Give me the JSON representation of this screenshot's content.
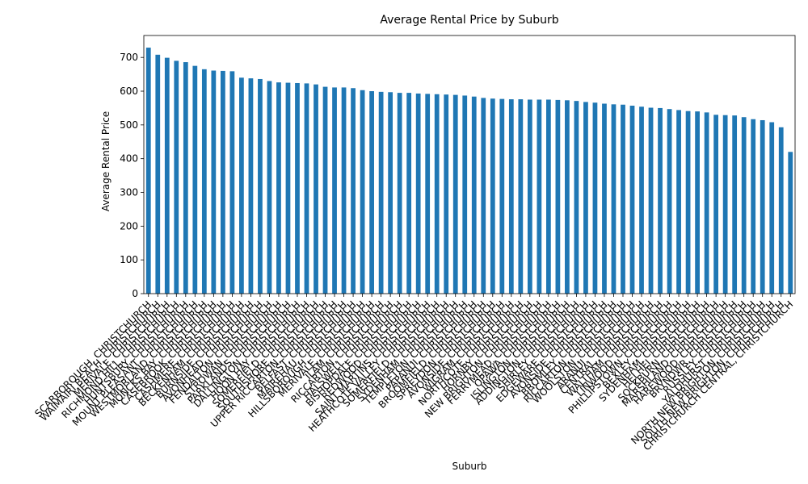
{
  "chart_data": {
    "type": "bar",
    "title": "Average Rental Price by Suburb",
    "xlabel": "Suburb",
    "ylabel": "Average Rental Price",
    "ylim": [
      0,
      765
    ],
    "yticks": [
      0,
      100,
      200,
      300,
      400,
      500,
      600,
      700
    ],
    "grid": false,
    "legend": "none",
    "bar_color": "#1f77b4",
    "categories": [
      "SCARBOROUGH, CHRISTCHURCH",
      "WAIMAIRI BEACH, CHRISTCHURCH",
      "MERIVALE, CHRISTCHURCH",
      "RICHMOND HILL, CHRISTCHURCH",
      "HUNTSBURY, CHRISTCHURCH",
      "MOUNT PLEASANT, CHRISTCHURCH",
      "WESTMORLAND, CHRISTCHURCH",
      "MONCKS BAY, CHRISTCHURCH",
      "CASEBROOK, CHRISTCHURCH",
      "CASHMERE, CHRISTCHURCH",
      "BECKENHAM, CHRISTCHURCH",
      "BURNSIDE, CHRISTCHURCH",
      "AVONHEAD, CHRISTCHURCH",
      "FENDALTON, CHRISTCHURCH",
      "STROWAN, CHRISTCHURCH",
      "PARKLANDS, CHRISTCHURCH",
      "DALLINGTON, CHRISTCHURCH",
      "HOON HAY, CHRISTCHURCH",
      "SOMERFIELD, CHRISTCHURCH",
      "SOUTHSHORE, CHRISTCHURCH",
      "UPPER RICCARTON, CHRISTCHURCH",
      "BELFAST, CHRISTCHURCH",
      "MAIREHAU, CHRISTCHURCH",
      "HILLSBOROUGH, CHRISTCHURCH",
      "MERIVALE, CHRISTCHURCH",
      "ILAM, CHRISTCHURCH",
      "RICCARTON, CHRISTCHURCH",
      "HALSWELL, CHRISTCHURCH",
      "BISHOPDALE, CHRISTCHURCH",
      "REDWOOD, CHRISTCHURCH",
      "SAINT MARTINS, CHRISTCHURCH",
      "HEATHCOTE VALLEY, CHRISTCHURCH",
      "SOMERFIELD, CHRISTCHURCH",
      "SYDENHAM, CHRISTCHURCH",
      "TEMPLETON, CHRISTCHURCH",
      "PAPANUI, CHRISTCHURCH",
      "BROOMFIELD, CHRISTCHURCH",
      "SPREYDON, CHRISTCHURCH",
      "AVONSIDE, CHRISTCHURCH",
      "WIGRAM, CHRISTCHURCH",
      "NORTHCOTE, CHRISTCHURCH",
      "HORNBY, CHRISTCHURCH",
      "NEW BRIGHTON, CHRISTCHURCH",
      "FERRYMEAD, CHRISTCHURCH",
      "OPAWA, CHRISTCHURCH",
      "ISLINGTON, CHRISTCHURCH",
      "ADDINGTON, CHRISTCHURCH",
      "SHIRLEY, CHRISTCHURCH",
      "EDGEWARE, CHRISTCHURCH",
      "AVONSIDE, CHRISTCHURCH",
      "BROMLEY, CHRISTCHURCH",
      "RICCARTON, CHRISTCHURCH",
      "WOOLSTON, CHRISTCHURCH",
      "ARANUI, CHRISTCHURCH",
      "CENTRAL, CHRISTCHURCH",
      "WALTHAM, CHRISTCHURCH",
      "LINWOOD, CHRISTCHURCH",
      "PHILLIPSTOWN, CHRISTCHURCH",
      "BEXLEY, CHRISTCHURCH",
      "SYDENHAM, CHRISTCHURCH",
      "HEI HEI, CHRISTCHURCH",
      "SOCKBURN, CHRISTCHURCH",
      "MARSHLAND, CHRISTCHURCH",
      "HAREWOOD, CHRISTCHURCH",
      "BRYNDWR, CHRISTCHURCH",
      "RUSSLEY, CHRISTCHURCH",
      "YALDHURST, CHRISTCHURCH",
      "NORTH NEW BRIGHTON, CHRISTCHURCH",
      "SOUTH NEW BRIGHTON, CHRISTCHURCH",
      "CHRISTCHURCH CENTRAL, CHRISTCHURCH"
    ],
    "values": [
      729,
      708,
      699,
      690,
      686,
      675,
      665,
      661,
      660,
      659,
      640,
      638,
      636,
      630,
      626,
      625,
      624,
      623,
      620,
      613,
      611,
      611,
      609,
      603,
      600,
      598,
      597,
      595,
      595,
      593,
      592,
      591,
      590,
      589,
      587,
      584,
      580,
      578,
      577,
      576,
      576,
      575,
      575,
      575,
      574,
      573,
      571,
      568,
      566,
      563,
      561,
      560,
      557,
      554,
      551,
      550,
      547,
      544,
      541,
      540,
      537,
      530,
      529,
      528,
      523,
      517,
      514,
      508,
      493,
      420
    ]
  }
}
